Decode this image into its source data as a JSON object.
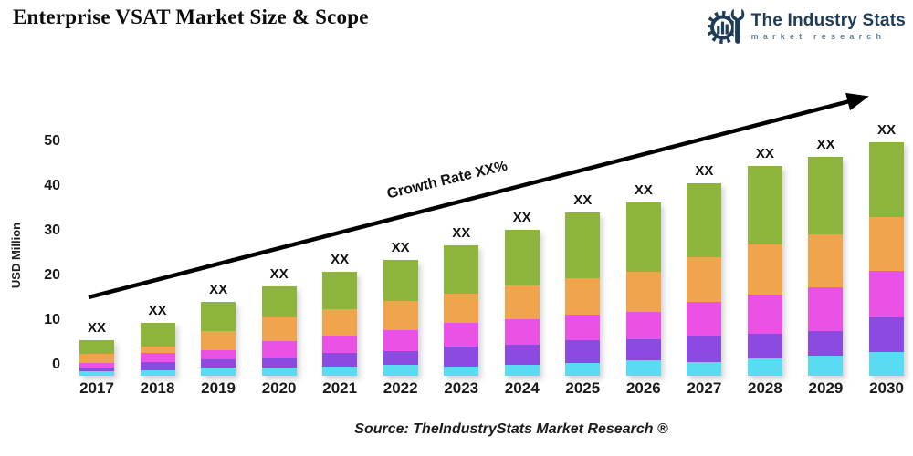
{
  "header": {
    "title": "Enterprise VSAT Market Size & Scope"
  },
  "logo": {
    "name": "The Industry Stats",
    "tagline": "market research",
    "brand_color": "#1c3c57",
    "tagline_color": "#628397",
    "icon": "gear-wrench-barchart-icon"
  },
  "chart_data": {
    "type": "bar",
    "stacked": true,
    "categories": [
      "2017",
      "2018",
      "2019",
      "2020",
      "2021",
      "2022",
      "2023",
      "2024",
      "2025",
      "2026",
      "2027",
      "2028",
      "2029",
      "2030"
    ],
    "series": [
      {
        "name": "cyan",
        "color": "#59dbf2",
        "values": [
          1.0,
          1.2,
          1.8,
          1.8,
          2.0,
          2.4,
          2.0,
          2.4,
          2.9,
          3.5,
          3.1,
          3.9,
          4.5,
          5.3
        ]
      },
      {
        "name": "purple",
        "color": "#8c4be0",
        "values": [
          0.8,
          1.8,
          1.8,
          2.2,
          3.1,
          3.1,
          4.5,
          4.5,
          5.1,
          4.7,
          5.9,
          5.5,
          5.5,
          7.8
        ]
      },
      {
        "name": "magenta",
        "color": "#e952e5",
        "values": [
          1.0,
          2.0,
          2.2,
          3.7,
          3.9,
          4.7,
          5.3,
          5.7,
          5.7,
          6.1,
          7.6,
          8.8,
          9.8,
          10.4
        ]
      },
      {
        "name": "orange",
        "color": "#f0a44c",
        "values": [
          2.0,
          1.6,
          4.3,
          5.3,
          5.9,
          6.5,
          6.5,
          7.6,
          8.2,
          9.0,
          10.0,
          11.2,
          11.8,
          12.0
        ]
      },
      {
        "name": "green",
        "color": "#8db53e",
        "values": [
          3.1,
          5.3,
          6.5,
          7.1,
          8.4,
          9.2,
          10.8,
          12.4,
          14.7,
          15.5,
          16.5,
          17.6,
          17.3,
          16.7
        ]
      }
    ],
    "values_note": "numeric values hidden on chart as XX; series values estimated from bar pixel heights",
    "bar_value_label": "XX",
    "trend": {
      "label": "Growth Rate XX%"
    },
    "title": "",
    "xlabel": "",
    "ylabel": "USD Million",
    "yticks": [
      0,
      10,
      20,
      30,
      40,
      50
    ],
    "ylim": [
      0,
      50
    ],
    "grid": false,
    "legend": "none"
  },
  "footer": {
    "source": "Source: TheIndustryStats Market Research ®"
  }
}
